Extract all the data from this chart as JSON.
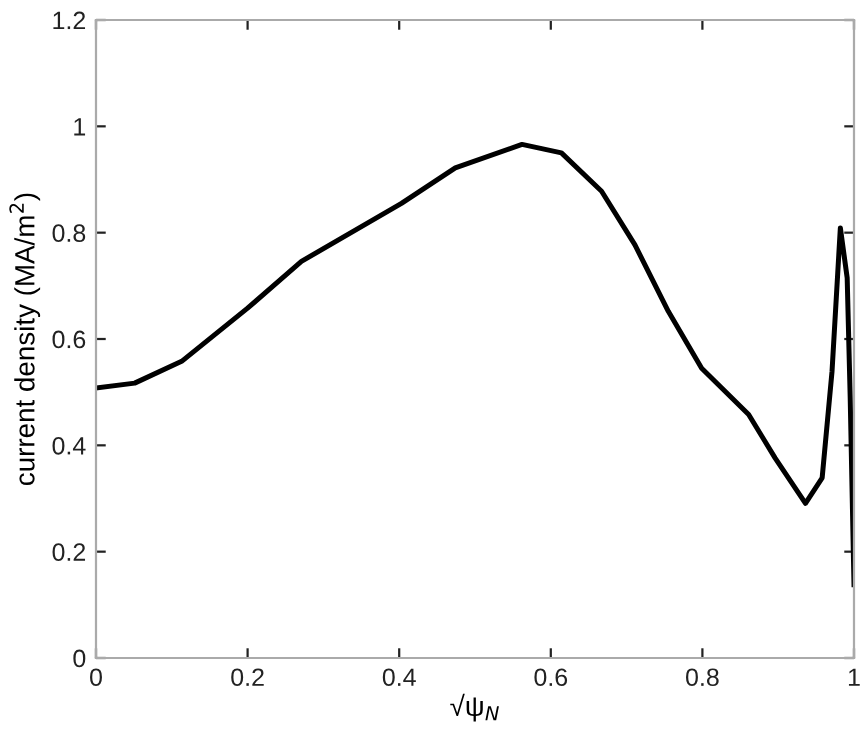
{
  "chart_data": {
    "type": "line",
    "xlabel": "√ψ$_{N}$",
    "ylabel": "current density (MA/m$^{2}$)",
    "xlim": [
      0,
      1
    ],
    "ylim": [
      0,
      1.2
    ],
    "xticks": [
      0,
      0.2,
      0.4,
      0.6,
      0.8,
      1
    ],
    "yticks": [
      0,
      0.2,
      0.4,
      0.6,
      0.8,
      1,
      1.2
    ],
    "grid": false,
    "legend": false,
    "series": [
      {
        "color": "#000000",
        "line_style": "solid",
        "x": [
          0,
          0.051,
          0.113,
          0.2,
          0.271,
          0.403,
          0.474,
          0.562,
          0.614,
          0.667,
          0.711,
          0.755,
          0.799,
          0.861,
          0.896,
          0.936,
          0.958,
          0.971,
          0.982,
          0.991,
          0.995,
          1.0
        ],
        "values": [
          0.508,
          0.517,
          0.558,
          0.658,
          0.746,
          0.855,
          0.922,
          0.966,
          0.95,
          0.878,
          0.777,
          0.652,
          0.545,
          0.458,
          0.376,
          0.291,
          0.339,
          0.539,
          0.809,
          0.715,
          0.489,
          0.138
        ]
      }
    ]
  }
}
